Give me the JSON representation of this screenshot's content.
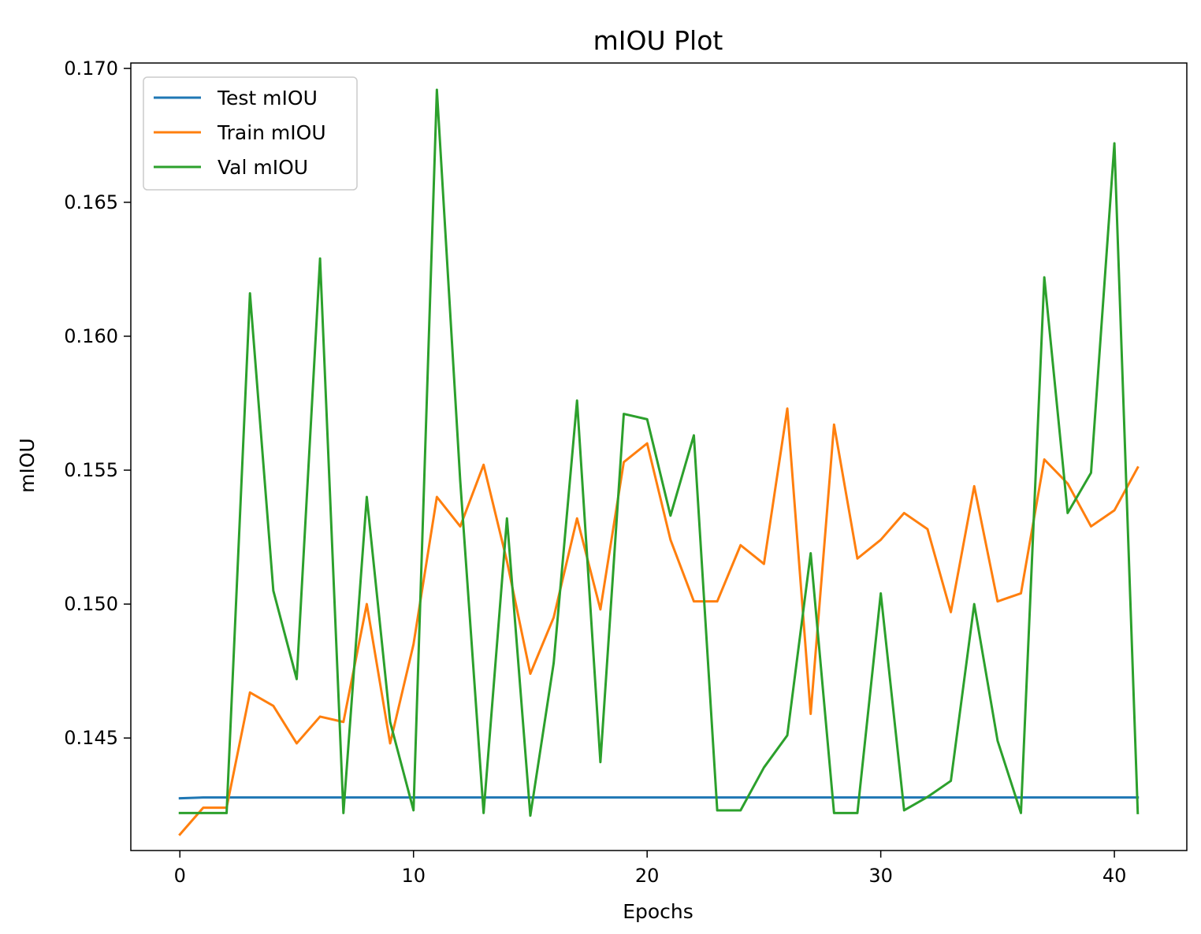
{
  "chart_data": {
    "type": "line",
    "title": "mIOU Plot",
    "xlabel": "Epochs",
    "ylabel": "mIOU",
    "xlim": [
      -2.1,
      43.1
    ],
    "ylim": [
      0.1408,
      0.1702
    ],
    "x_ticks": [
      0,
      10,
      20,
      30,
      40
    ],
    "x_tick_labels": [
      "0",
      "10",
      "20",
      "30",
      "40"
    ],
    "y_ticks": [
      0.145,
      0.15,
      0.155,
      0.16,
      0.165,
      0.17
    ],
    "y_tick_labels": [
      "0.145",
      "0.150",
      "0.155",
      "0.160",
      "0.165",
      "0.170"
    ],
    "grid": false,
    "legend_position": "upper-left",
    "x": [
      0,
      1,
      2,
      3,
      4,
      5,
      6,
      7,
      8,
      9,
      10,
      11,
      12,
      13,
      14,
      15,
      16,
      17,
      18,
      19,
      20,
      21,
      22,
      23,
      24,
      25,
      26,
      27,
      28,
      29,
      30,
      31,
      32,
      33,
      34,
      35,
      36,
      37,
      38,
      39,
      40,
      41
    ],
    "series": [
      {
        "name": "Test mIOU",
        "color": "#1f77b4",
        "values": [
          0.14275,
          0.14278,
          0.14278,
          0.14278,
          0.14278,
          0.14278,
          0.14278,
          0.14278,
          0.14278,
          0.14278,
          0.14278,
          0.14278,
          0.14278,
          0.14278,
          0.14278,
          0.14278,
          0.14278,
          0.14278,
          0.14278,
          0.14278,
          0.14278,
          0.14278,
          0.14278,
          0.14278,
          0.14278,
          0.14278,
          0.14278,
          0.14278,
          0.14278,
          0.14278,
          0.14278,
          0.14278,
          0.14278,
          0.14278,
          0.14278,
          0.14278,
          0.14278,
          0.14278,
          0.14278,
          0.14278,
          0.14278,
          0.14278
        ]
      },
      {
        "name": "Train mIOU",
        "color": "#ff7f0e",
        "values": [
          0.1414,
          0.1424,
          0.1424,
          0.1467,
          0.1462,
          0.1448,
          0.1458,
          0.1456,
          0.15,
          0.1448,
          0.1485,
          0.154,
          0.1529,
          0.1552,
          0.1516,
          0.1474,
          0.1495,
          0.1532,
          0.1498,
          0.1553,
          0.156,
          0.1524,
          0.1501,
          0.1501,
          0.1522,
          0.1515,
          0.1573,
          0.1459,
          0.1567,
          0.1517,
          0.1524,
          0.1534,
          0.1528,
          0.1497,
          0.1544,
          0.1501,
          0.1504,
          0.1554,
          0.1545,
          0.1529,
          0.1535,
          0.1551
        ]
      },
      {
        "name": "Val mIOU",
        "color": "#2ca02c",
        "values": [
          0.1422,
          0.1422,
          0.1422,
          0.1616,
          0.1505,
          0.1472,
          0.1629,
          0.1422,
          0.154,
          0.1456,
          0.1423,
          0.1692,
          0.1546,
          0.1422,
          0.1532,
          0.1421,
          0.1478,
          0.1576,
          0.1441,
          0.1571,
          0.1569,
          0.1533,
          0.1563,
          0.1423,
          0.1423,
          0.1439,
          0.1451,
          0.1519,
          0.1422,
          0.1422,
          0.1504,
          0.1423,
          0.1428,
          0.1434,
          0.15,
          0.1449,
          0.1422,
          0.1622,
          0.1534,
          0.1549,
          0.1672,
          0.1422
        ]
      }
    ]
  }
}
